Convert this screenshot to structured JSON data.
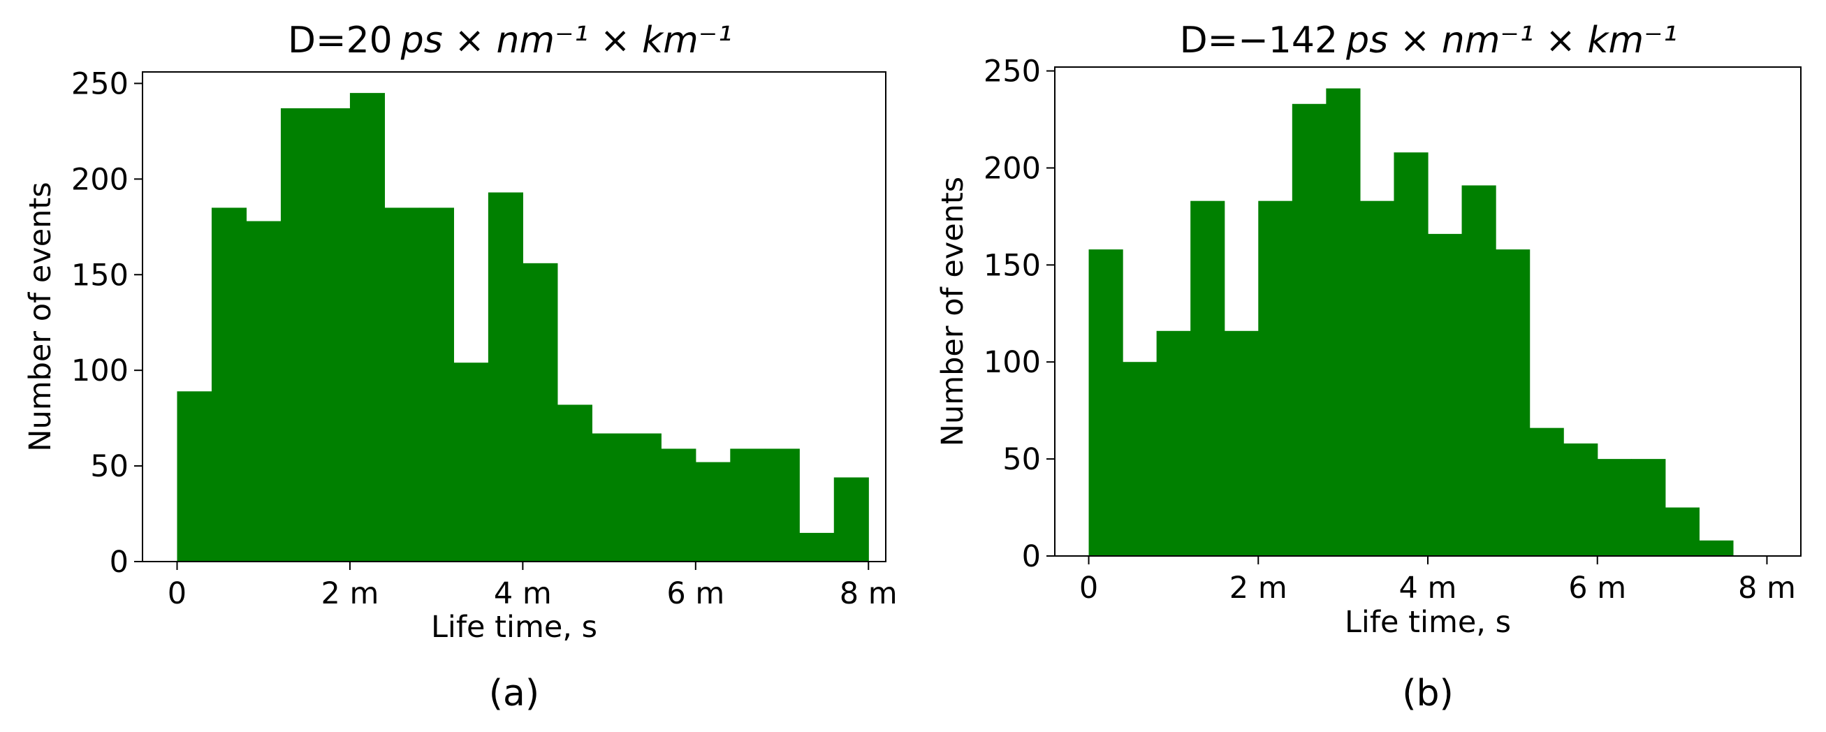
{
  "colors": {
    "bar": "#008000",
    "axis": "#000000",
    "background": "#ffffff"
  },
  "chart_data": [
    {
      "type": "bar",
      "title_prefix": "D=",
      "title_number": "20",
      "title_unit": "ps × nm⁻¹ × km⁻¹",
      "xlabel": "Life time, s",
      "ylabel": "Number of events",
      "caption": "(a)",
      "xlim": [
        -0.4,
        8.2
      ],
      "ylim": [
        0,
        256
      ],
      "xticks": [
        0,
        2,
        4,
        6,
        8
      ],
      "xtick_labels": [
        "0",
        "2 m",
        "4 m",
        "6 m",
        "8 m"
      ],
      "yticks": [
        0,
        50,
        100,
        150,
        200,
        250
      ],
      "ytick_labels": [
        "0",
        "50",
        "100",
        "150",
        "200",
        "250"
      ],
      "bin_edges": [
        0,
        0.4,
        0.8,
        1.2,
        1.6,
        2.0,
        2.4,
        2.8,
        3.2,
        3.6,
        4.0,
        4.4,
        4.8,
        5.2,
        5.6,
        6.0,
        6.4,
        6.8,
        7.2,
        7.6,
        8.0
      ],
      "values": [
        89,
        185,
        178,
        237,
        237,
        245,
        185,
        185,
        104,
        193,
        156,
        82,
        67,
        67,
        59,
        52,
        59,
        59,
        15,
        44
      ]
    },
    {
      "type": "bar",
      "title_prefix": "D=",
      "title_number": "−142",
      "title_unit": "ps × nm⁻¹ × km⁻¹",
      "xlabel": "Life time, s",
      "ylabel": "Number of events",
      "caption": "(b)",
      "xlim": [
        -0.4,
        8.4
      ],
      "ylim": [
        0,
        252
      ],
      "xticks": [
        0,
        2,
        4,
        6,
        8
      ],
      "xtick_labels": [
        "0",
        "2 m",
        "4 m",
        "6 m",
        "8 m"
      ],
      "yticks": [
        0,
        50,
        100,
        150,
        200,
        250
      ],
      "ytick_labels": [
        "0",
        "50",
        "100",
        "150",
        "200",
        "250"
      ],
      "bin_edges": [
        0,
        0.4,
        0.8,
        1.2,
        1.6,
        2.0,
        2.4,
        2.8,
        3.2,
        3.6,
        4.0,
        4.4,
        4.8,
        5.2,
        5.6,
        6.0,
        6.4,
        6.8,
        7.2,
        7.6
      ],
      "values": [
        158,
        100,
        116,
        183,
        116,
        183,
        233,
        241,
        183,
        208,
        166,
        191,
        158,
        66,
        58,
        50,
        50,
        25,
        8
      ]
    }
  ]
}
